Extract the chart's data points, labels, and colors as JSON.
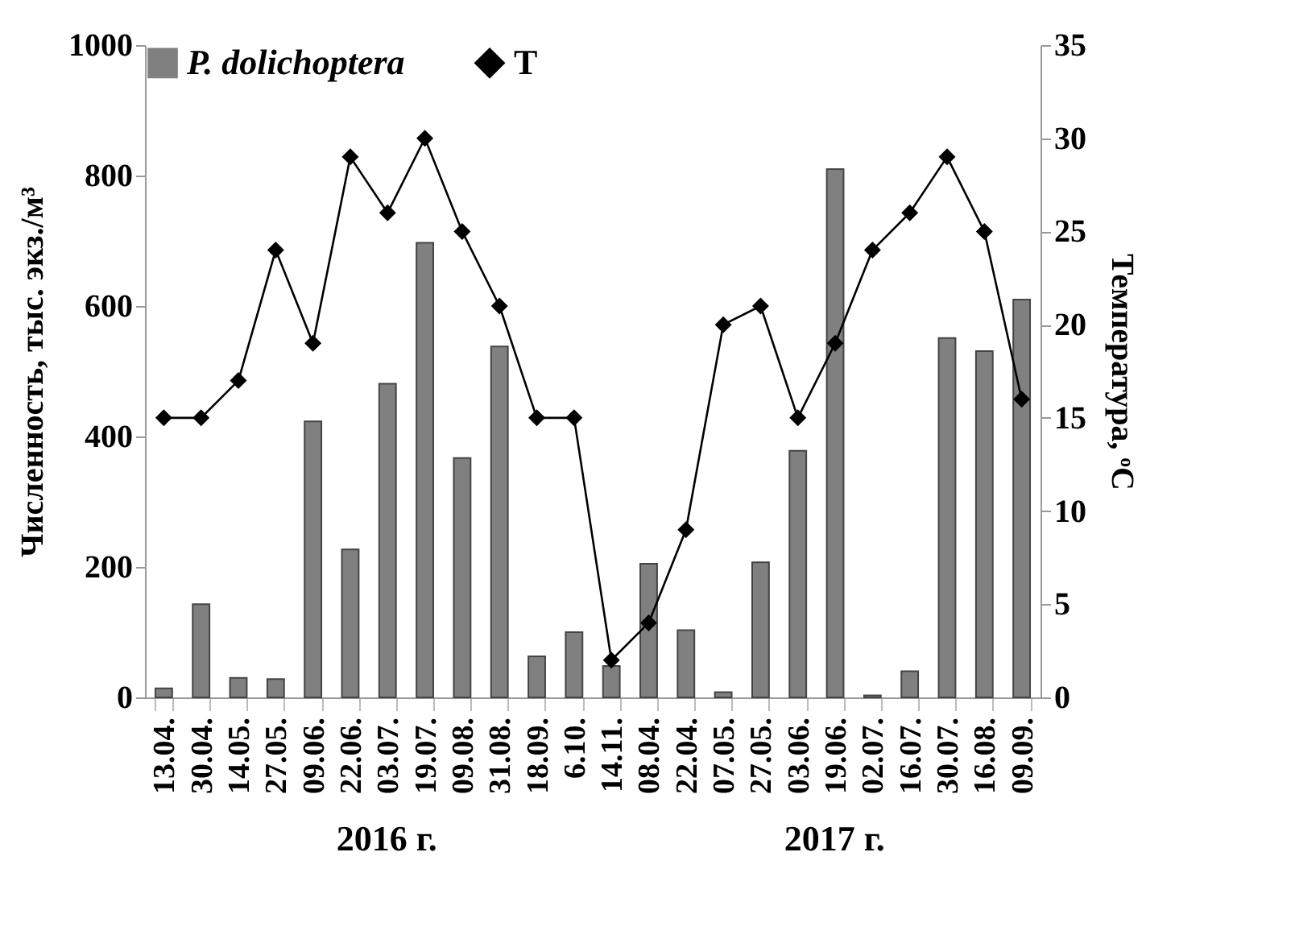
{
  "chart_data": {
    "type": "bar",
    "ylabel": "Численность, тыс. экз./м³",
    "y2label": "Температура, ᵒC",
    "categories": [
      "13.04.",
      "30.04.",
      "14.05.",
      "27.05.",
      "09.06.",
      "22.06.",
      "03.07.",
      "19.07.",
      "09.08.",
      "31.08.",
      "18.09.",
      "6.10.",
      "14.11.",
      "08.04.",
      "22.04.",
      "07.05.",
      "27.05.",
      "03.06.",
      "19.06.",
      "02.07.",
      "16.07.",
      "30.07.",
      "16.08.",
      "09.09."
    ],
    "series": [
      {
        "name": "P. dolichoptera",
        "color": "#808080",
        "values": [
          14,
          143,
          30,
          28,
          423,
          227,
          481,
          697,
          367,
          538,
          63,
          100,
          48,
          205,
          103,
          8,
          207,
          378,
          810,
          3,
          40,
          551,
          531,
          610
        ]
      },
      {
        "name": "T",
        "type": "line",
        "axis": "y2",
        "color": "#000000",
        "marker": "diamond",
        "values": [
          15,
          15,
          17,
          24,
          19,
          29,
          26,
          30,
          25,
          21,
          15,
          15,
          2,
          4,
          9,
          20,
          21,
          15,
          19,
          24,
          26,
          29,
          25,
          16
        ]
      }
    ],
    "ylim": [
      0,
      1000
    ],
    "yticks": [
      0,
      200,
      400,
      600,
      800,
      1000
    ],
    "y2lim": [
      0,
      35
    ],
    "y2ticks": [
      0,
      5,
      10,
      15,
      20,
      25,
      30,
      35
    ],
    "grid": false,
    "legend": "top",
    "annotations": [
      "2016 г.",
      "2017 г."
    ]
  }
}
